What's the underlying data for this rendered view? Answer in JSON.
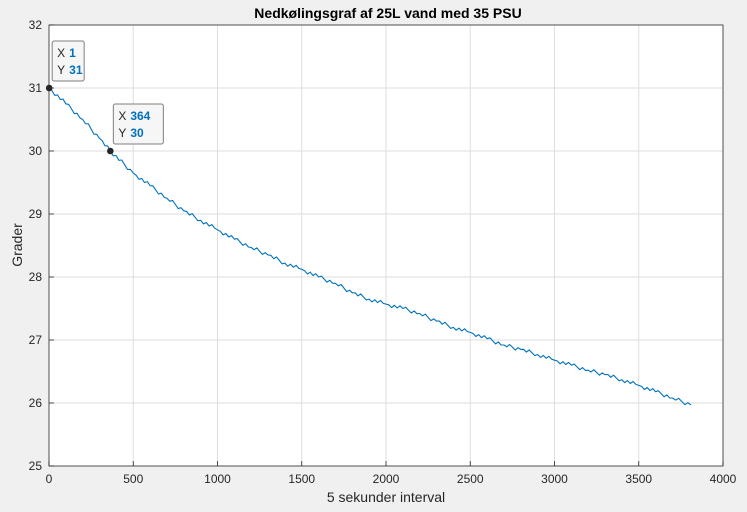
{
  "chart_data": {
    "type": "line",
    "title": "Nedkølingsgraf af 25L vand med 35 PSU",
    "xlabel": "5 sekunder interval",
    "ylabel": "Grader",
    "xlim": [
      0,
      4000
    ],
    "ylim": [
      25,
      32
    ],
    "xticks": [
      "0",
      "500",
      "1000",
      "1500",
      "2000",
      "2500",
      "3000",
      "3500",
      "4000"
    ],
    "yticks": [
      "25",
      "26",
      "27",
      "28",
      "29",
      "30",
      "31",
      "32"
    ],
    "grid": true,
    "series": [
      {
        "color": "#0072bd",
        "x": [
          1,
          100,
          200,
          300,
          364,
          500,
          600,
          700,
          800,
          900,
          1000,
          1100,
          1200,
          1300,
          1400,
          1500,
          1600,
          1700,
          1800,
          1900,
          2000,
          2100,
          2200,
          2300,
          2400,
          2500,
          2600,
          2700,
          2800,
          2900,
          3000,
          3100,
          3200,
          3300,
          3400,
          3500,
          3600,
          3700,
          3810
        ],
        "y": [
          31,
          30.75,
          30.5,
          30.2,
          30,
          29.65,
          29.45,
          29.25,
          29.05,
          28.9,
          28.75,
          28.6,
          28.47,
          28.35,
          28.22,
          28.12,
          28,
          27.9,
          27.75,
          27.65,
          27.57,
          27.5,
          27.42,
          27.3,
          27.2,
          27.12,
          27.02,
          26.92,
          26.85,
          26.77,
          26.68,
          26.6,
          26.52,
          26.45,
          26.37,
          26.28,
          26.18,
          26.08,
          25.97
        ]
      }
    ],
    "datatips": [
      {
        "x_label": "X",
        "x_value": "1",
        "y_label": "Y",
        "y_value": "31",
        "x": 1,
        "y": 31
      },
      {
        "x_label": "X",
        "x_value": "364",
        "y_label": "Y",
        "y_value": "30",
        "x": 364,
        "y": 30
      }
    ]
  }
}
